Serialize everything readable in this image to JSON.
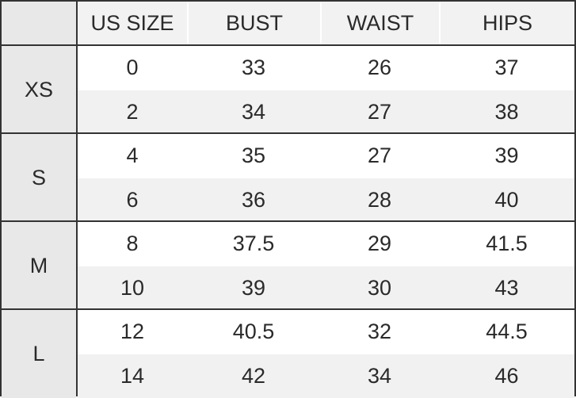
{
  "headers": [
    "",
    "US SIZE",
    "BUST",
    "WAIST",
    "HIPS"
  ],
  "groups": [
    {
      "label": "XS",
      "rows": [
        [
          "0",
          "33",
          "26",
          "37"
        ],
        [
          "2",
          "34",
          "27",
          "38"
        ]
      ]
    },
    {
      "label": "S",
      "rows": [
        [
          "4",
          "35",
          "27",
          "39"
        ],
        [
          "6",
          "36",
          "28",
          "40"
        ]
      ]
    },
    {
      "label": "M",
      "rows": [
        [
          "8",
          "37.5",
          "29",
          "41.5"
        ],
        [
          "10",
          "39",
          "30",
          "43"
        ]
      ]
    },
    {
      "label": "L",
      "rows": [
        [
          "12",
          "40.5",
          "32",
          "44.5"
        ],
        [
          "14",
          "42",
          "34",
          "46"
        ]
      ]
    }
  ],
  "colors": {
    "border": "#333333",
    "side_bg": "#e8e8e8",
    "alt_bg": "#f1f1f1",
    "text": "#2a2a2a"
  }
}
